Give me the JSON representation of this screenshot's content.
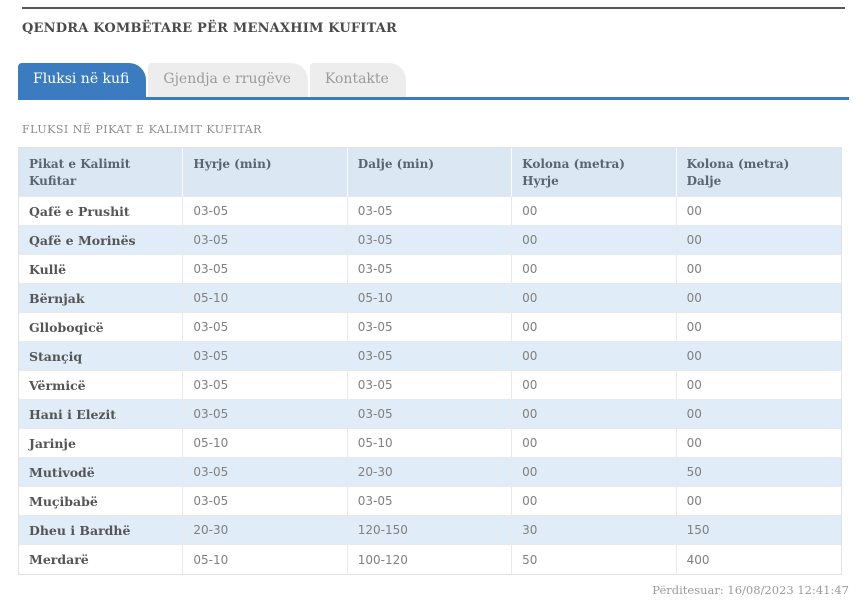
{
  "header": {
    "title": "QENDRA KOMBËTARE PËR MENAXHIM KUFITAR"
  },
  "tabs": [
    {
      "label": "Fluksi në kufi",
      "active": true
    },
    {
      "label": "Gjendja e rrugëve",
      "active": false
    },
    {
      "label": "Kontakte",
      "active": false
    }
  ],
  "section": {
    "heading": "FLUKSI NË PIKAT E KALIMIT KUFITAR"
  },
  "table": {
    "columns": [
      {
        "label": "Pikat e Kalimit Kufitar",
        "sub": ""
      },
      {
        "label": "Hyrje (min)",
        "sub": ""
      },
      {
        "label": "Dalje (min)",
        "sub": ""
      },
      {
        "label": "Kolona (metra)",
        "sub": "Hyrje"
      },
      {
        "label": "Kolona (metra)",
        "sub": "Dalje"
      }
    ],
    "rows": [
      {
        "name": "Qafë e Prushit",
        "hyrje": "03-05",
        "dalje": "03-05",
        "kolona_hyrje": "00",
        "kolona_dalje": "00"
      },
      {
        "name": "Qafë e Morinës",
        "hyrje": "03-05",
        "dalje": "03-05",
        "kolona_hyrje": "00",
        "kolona_dalje": "00"
      },
      {
        "name": "Kullë",
        "hyrje": "03-05",
        "dalje": "03-05",
        "kolona_hyrje": "00",
        "kolona_dalje": "00"
      },
      {
        "name": "Bërnjak",
        "hyrje": "05-10",
        "dalje": "05-10",
        "kolona_hyrje": "00",
        "kolona_dalje": "00"
      },
      {
        "name": "Glloboqicë",
        "hyrje": "03-05",
        "dalje": "03-05",
        "kolona_hyrje": "00",
        "kolona_dalje": "00"
      },
      {
        "name": "Stançiq",
        "hyrje": "03-05",
        "dalje": "03-05",
        "kolona_hyrje": "00",
        "kolona_dalje": "00"
      },
      {
        "name": "Vërmicë",
        "hyrje": "03-05",
        "dalje": "03-05",
        "kolona_hyrje": "00",
        "kolona_dalje": "00"
      },
      {
        "name": "Hani i Elezit",
        "hyrje": "03-05",
        "dalje": "03-05",
        "kolona_hyrje": "00",
        "kolona_dalje": "00"
      },
      {
        "name": "Jarinje",
        "hyrje": "05-10",
        "dalje": "05-10",
        "kolona_hyrje": "00",
        "kolona_dalje": "00"
      },
      {
        "name": "Mutivodë",
        "hyrje": "03-05",
        "dalje": "20-30",
        "kolona_hyrje": "00",
        "kolona_dalje": "50"
      },
      {
        "name": "Muçibabë",
        "hyrje": "03-05",
        "dalje": "03-05",
        "kolona_hyrje": "00",
        "kolona_dalje": "00"
      },
      {
        "name": "Dheu i Bardhë",
        "hyrje": "20-30",
        "dalje": "120-150",
        "kolona_hyrje": "30",
        "kolona_dalje": "150"
      },
      {
        "name": "Merdarë",
        "hyrje": "05-10",
        "dalje": "100-120",
        "kolona_hyrje": "50",
        "kolona_dalje": "400"
      }
    ]
  },
  "footer": {
    "updated": "Përditesuar: 16/08/2023 12:41:47"
  },
  "colors": {
    "accent": "#3a7cbf",
    "header_bg": "#dbe8f4",
    "stripe_bg": "#e0ecf7",
    "top_rule": "#58585a"
  }
}
